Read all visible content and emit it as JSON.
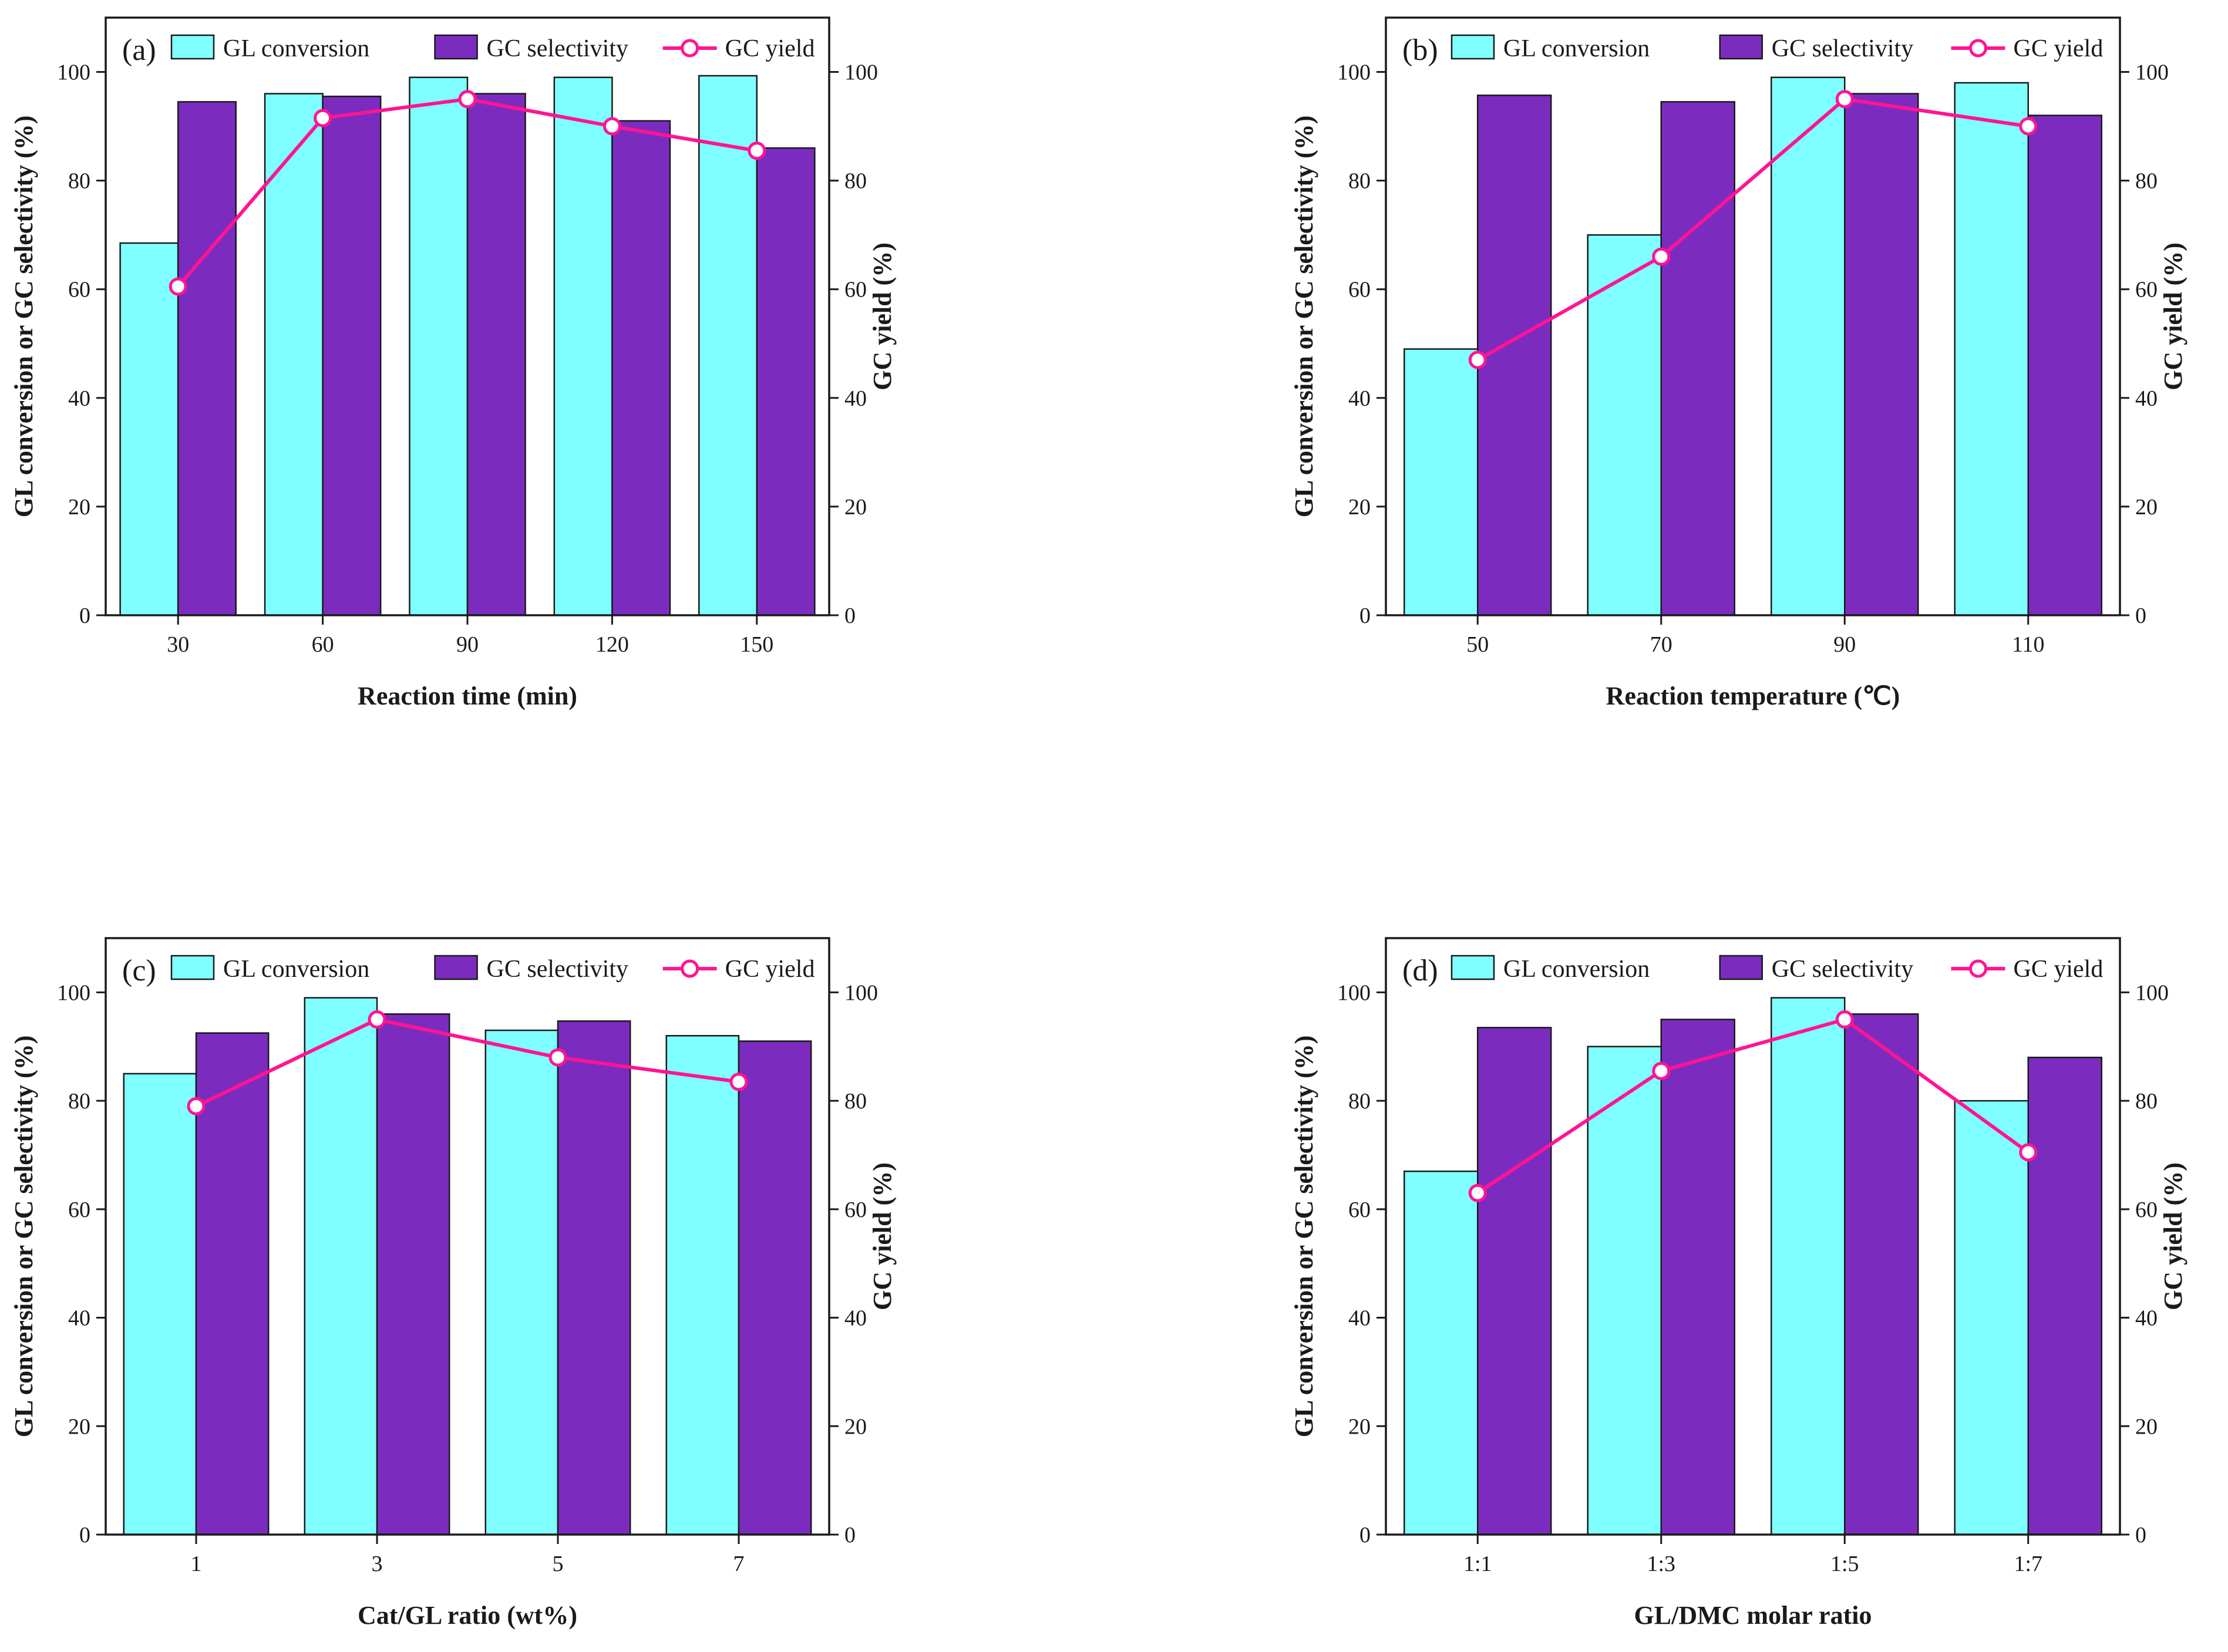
{
  "colors": {
    "conversion": "#7fffff",
    "selectivity": "#7b2cbf",
    "yield": "#ff1493",
    "axis": "#1a1a1a"
  },
  "chart_data": [
    {
      "type": "bar",
      "panel_label": "(a)",
      "categories": [
        "30",
        "60",
        "90",
        "120",
        "150"
      ],
      "xlabel": "Reaction time (min)",
      "ylabel": "GL conversion or GC selectivity (%)",
      "y2label": "GC yield (%)",
      "ylim": [
        0,
        110
      ],
      "y2lim": [
        0,
        110
      ],
      "yticks": [
        0,
        20,
        40,
        60,
        80,
        100
      ],
      "legend_position": "top",
      "series": [
        {
          "name": "GL conversion",
          "kind": "bar",
          "values": [
            68.5,
            96.0,
            99.0,
            99.0,
            99.3
          ]
        },
        {
          "name": "GC selectivity",
          "kind": "bar",
          "values": [
            94.5,
            95.5,
            96.0,
            91.0,
            86.0
          ]
        },
        {
          "name": "GC yield",
          "kind": "line",
          "axis": "right",
          "values": [
            60.5,
            91.5,
            95.0,
            90.0,
            85.5
          ]
        }
      ]
    },
    {
      "type": "bar",
      "panel_label": "(b)",
      "categories": [
        "50",
        "70",
        "90",
        "110"
      ],
      "xlabel": "Reaction temperature (℃)",
      "ylabel": "GL conversion or GC selectivity (%)",
      "y2label": "GC yield (%)",
      "ylim": [
        0,
        110
      ],
      "y2lim": [
        0,
        110
      ],
      "yticks": [
        0,
        20,
        40,
        60,
        80,
        100
      ],
      "legend_position": "top",
      "series": [
        {
          "name": "GL conversion",
          "kind": "bar",
          "values": [
            49.0,
            70.0,
            99.0,
            98.0
          ]
        },
        {
          "name": "GC selectivity",
          "kind": "bar",
          "values": [
            95.7,
            94.5,
            96.0,
            92.0
          ]
        },
        {
          "name": "GC yield",
          "kind": "line",
          "axis": "right",
          "values": [
            47.0,
            66.0,
            95.0,
            90.0
          ]
        }
      ]
    },
    {
      "type": "bar",
      "panel_label": "(c)",
      "categories": [
        "1",
        "3",
        "5",
        "7"
      ],
      "xlabel": "Cat/GL ratio (wt%)",
      "ylabel": "GL conversion or GC selectivity (%)",
      "y2label": "GC yield (%)",
      "ylim": [
        0,
        110
      ],
      "y2lim": [
        0,
        110
      ],
      "yticks": [
        0,
        20,
        40,
        60,
        80,
        100
      ],
      "legend_position": "top",
      "series": [
        {
          "name": "GL conversion",
          "kind": "bar",
          "values": [
            85.0,
            99.0,
            93.0,
            92.0
          ]
        },
        {
          "name": "GC selectivity",
          "kind": "bar",
          "values": [
            92.5,
            96.0,
            94.7,
            91.0
          ]
        },
        {
          "name": "GC yield",
          "kind": "line",
          "axis": "right",
          "values": [
            79.0,
            95.0,
            88.0,
            83.5
          ]
        }
      ]
    },
    {
      "type": "bar",
      "panel_label": "(d)",
      "categories": [
        "1:1",
        "1:3",
        "1:5",
        "1:7"
      ],
      "xlabel": "GL/DMC molar ratio",
      "ylabel": "GL conversion or GC selectivity (%)",
      "y2label": "GC yield (%)",
      "ylim": [
        0,
        110
      ],
      "y2lim": [
        0,
        110
      ],
      "yticks": [
        0,
        20,
        40,
        60,
        80,
        100
      ],
      "legend_position": "top",
      "series": [
        {
          "name": "GL conversion",
          "kind": "bar",
          "values": [
            67.0,
            90.0,
            99.0,
            80.0
          ]
        },
        {
          "name": "GC selectivity",
          "kind": "bar",
          "values": [
            93.5,
            95.0,
            96.0,
            88.0
          ]
        },
        {
          "name": "GC yield",
          "kind": "line",
          "axis": "right",
          "values": [
            63.0,
            85.5,
            95.0,
            70.5
          ]
        }
      ]
    }
  ]
}
